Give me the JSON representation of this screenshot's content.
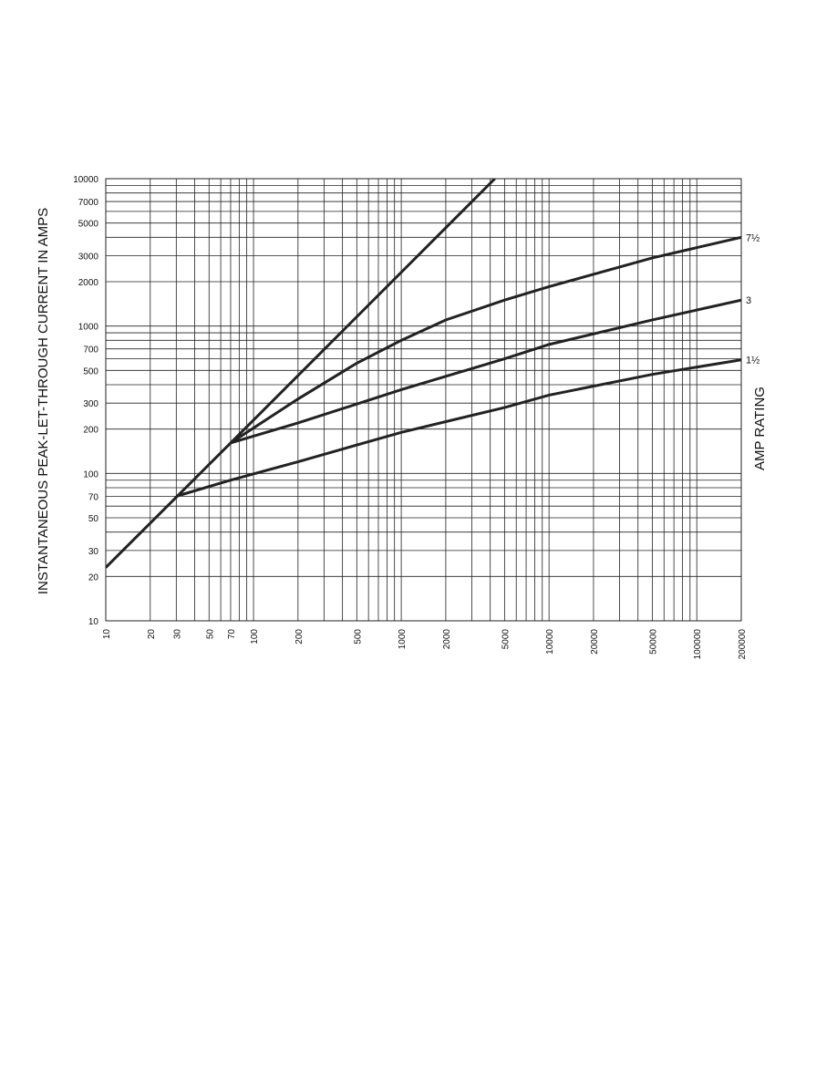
{
  "chart_data": {
    "type": "line",
    "ylabel": "INSTANTANEOUS PEAK-LET-THROUGH CURRENT IN AMPS",
    "y2label": "AMP RATING",
    "xscale": "log",
    "yscale": "log",
    "grid": true,
    "xlim": [
      10,
      200000
    ],
    "ylim": [
      10,
      10000
    ],
    "xticks": [
      10,
      20,
      30,
      50,
      70,
      100,
      200,
      500,
      1000,
      2000,
      5000,
      10000,
      20000,
      50000,
      100000,
      200000
    ],
    "yticks": [
      10,
      20,
      30,
      50,
      70,
      100,
      200,
      300,
      500,
      700,
      1000,
      2000,
      3000,
      5000,
      7000,
      10000
    ],
    "xminorticks": [
      40,
      60,
      80,
      90,
      300,
      400,
      600,
      700,
      800,
      900,
      3000,
      4000,
      6000,
      7000,
      8000,
      9000,
      30000,
      40000,
      60000,
      70000,
      80000,
      90000
    ],
    "yminorticks": [
      40,
      60,
      80,
      90,
      400,
      600,
      800,
      900,
      4000,
      6000,
      8000,
      9000
    ],
    "series": [
      {
        "color": "#222222",
        "x": [
          10,
          30,
          70,
          4300
        ],
        "values": [
          23,
          69,
          161,
          10000
        ]
      },
      {
        "name": "7½",
        "color": "#222222",
        "x": [
          70,
          200,
          500,
          1000,
          2000,
          5000,
          10000,
          50000,
          200000
        ],
        "values": [
          161,
          320,
          560,
          800,
          1100,
          1500,
          1850,
          2900,
          4000
        ]
      },
      {
        "name": "3",
        "color": "#222222",
        "x": [
          70,
          200,
          1000,
          5000,
          10000,
          50000,
          200000
        ],
        "values": [
          161,
          220,
          370,
          600,
          750,
          1100,
          1500
        ]
      },
      {
        "name": "1½",
        "color": "#222222",
        "x": [
          30,
          70,
          200,
          1000,
          5000,
          10000,
          50000,
          200000
        ],
        "values": [
          70,
          90,
          120,
          190,
          280,
          340,
          470,
          590
        ]
      }
    ]
  }
}
